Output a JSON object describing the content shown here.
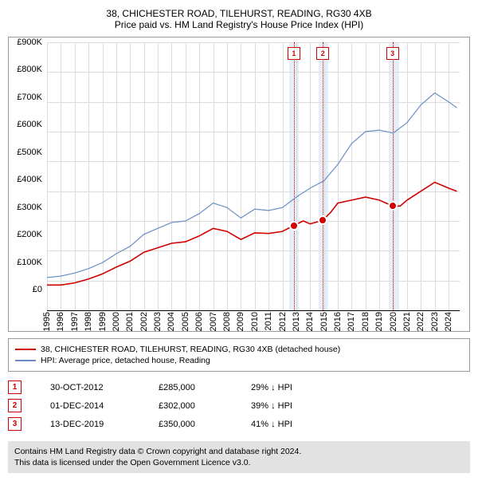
{
  "title": {
    "line1": "38, CHICHESTER ROAD, TILEHURST, READING, RG30 4XB",
    "line2": "Price paid vs. HM Land Registry's House Price Index (HPI)"
  },
  "chart": {
    "type": "line",
    "background_color": "#ffffff",
    "border_color": "#9a9a9a",
    "grid_color": "#dcdcdc",
    "axis_color": "#000000",
    "label_fontsize": 11,
    "ylim": [
      0,
      900
    ],
    "ytick_step": 100,
    "y_prefix": "£",
    "y_suffix": "K",
    "x_years": [
      1995,
      1996,
      1997,
      1998,
      1999,
      2000,
      2001,
      2002,
      2003,
      2004,
      2005,
      2006,
      2007,
      2008,
      2009,
      2010,
      2011,
      2012,
      2013,
      2014,
      2015,
      2016,
      2017,
      2018,
      2019,
      2020,
      2021,
      2022,
      2023,
      2024
    ],
    "xlim": [
      1995,
      2024.8
    ],
    "band_opacity": 0.7,
    "band_color": "#dbe7f4",
    "bands": [
      {
        "from": 2012.5,
        "to": 2013.2
      },
      {
        "from": 2014.6,
        "to": 2015.3
      },
      {
        "from": 2019.7,
        "to": 2020.4
      }
    ],
    "vline_color": "#d00000",
    "vline_style": "dotted",
    "vlines": [
      2012.83,
      2014.92,
      2019.95
    ],
    "series": [
      {
        "name": "property",
        "color": "#d00000",
        "width": 1.6,
        "points": [
          [
            1995,
            85
          ],
          [
            1996,
            85
          ],
          [
            1997,
            92
          ],
          [
            1998,
            105
          ],
          [
            1999,
            122
          ],
          [
            2000,
            145
          ],
          [
            2001,
            165
          ],
          [
            2002,
            195
          ],
          [
            2003,
            210
          ],
          [
            2004,
            225
          ],
          [
            2005,
            230
          ],
          [
            2006,
            250
          ],
          [
            2007,
            275
          ],
          [
            2008,
            265
          ],
          [
            2009,
            238
          ],
          [
            2010,
            260
          ],
          [
            2011,
            258
          ],
          [
            2012,
            265
          ],
          [
            2012.83,
            285
          ],
          [
            2013.5,
            300
          ],
          [
            2014,
            290
          ],
          [
            2014.92,
            302
          ],
          [
            2015.5,
            330
          ],
          [
            2016,
            360
          ],
          [
            2017,
            370
          ],
          [
            2018,
            380
          ],
          [
            2019,
            370
          ],
          [
            2019.95,
            350
          ],
          [
            2020.5,
            350
          ],
          [
            2021,
            370
          ],
          [
            2022,
            400
          ],
          [
            2023,
            430
          ],
          [
            2024,
            410
          ],
          [
            2024.6,
            400
          ]
        ]
      },
      {
        "name": "hpi",
        "color": "#6b8fc4",
        "width": 1.2,
        "points": [
          [
            1995,
            110
          ],
          [
            1996,
            115
          ],
          [
            1997,
            125
          ],
          [
            1998,
            140
          ],
          [
            1999,
            160
          ],
          [
            2000,
            190
          ],
          [
            2001,
            215
          ],
          [
            2002,
            255
          ],
          [
            2003,
            275
          ],
          [
            2004,
            295
          ],
          [
            2005,
            300
          ],
          [
            2006,
            325
          ],
          [
            2007,
            360
          ],
          [
            2008,
            345
          ],
          [
            2009,
            310
          ],
          [
            2010,
            340
          ],
          [
            2011,
            335
          ],
          [
            2012,
            345
          ],
          [
            2013,
            380
          ],
          [
            2014,
            410
          ],
          [
            2015,
            435
          ],
          [
            2016,
            490
          ],
          [
            2017,
            560
          ],
          [
            2018,
            600
          ],
          [
            2019,
            605
          ],
          [
            2020,
            595
          ],
          [
            2021,
            630
          ],
          [
            2022,
            690
          ],
          [
            2023,
            730
          ],
          [
            2024,
            700
          ],
          [
            2024.6,
            680
          ]
        ]
      }
    ],
    "markers": [
      {
        "n": "1",
        "x": 2012.83,
        "y": 285,
        "label_y_offset": -200,
        "color": "#d00000"
      },
      {
        "n": "2",
        "x": 2014.92,
        "y": 302,
        "label_y_offset": -200,
        "color": "#d00000"
      },
      {
        "n": "3",
        "x": 2019.95,
        "y": 350,
        "label_y_offset": -200,
        "color": "#d00000"
      }
    ]
  },
  "legend": {
    "items": [
      {
        "color": "#d00000",
        "label": "38, CHICHESTER ROAD, TILEHURST, READING, RG30 4XB (detached house)"
      },
      {
        "color": "#6b8fc4",
        "label": "HPI: Average price, detached house, Reading"
      }
    ]
  },
  "markers_table": {
    "rows": [
      {
        "n": "1",
        "date": "30-OCT-2012",
        "price": "£285,000",
        "delta": "29% ↓ HPI"
      },
      {
        "n": "2",
        "date": "01-DEC-2014",
        "price": "£302,000",
        "delta": "39% ↓ HPI"
      },
      {
        "n": "3",
        "date": "13-DEC-2019",
        "price": "£350,000",
        "delta": "41% ↓ HPI"
      }
    ]
  },
  "footer": {
    "line1": "Contains HM Land Registry data © Crown copyright and database right 2024.",
    "line2": "This data is licensed under the Open Government Licence v3.0."
  }
}
